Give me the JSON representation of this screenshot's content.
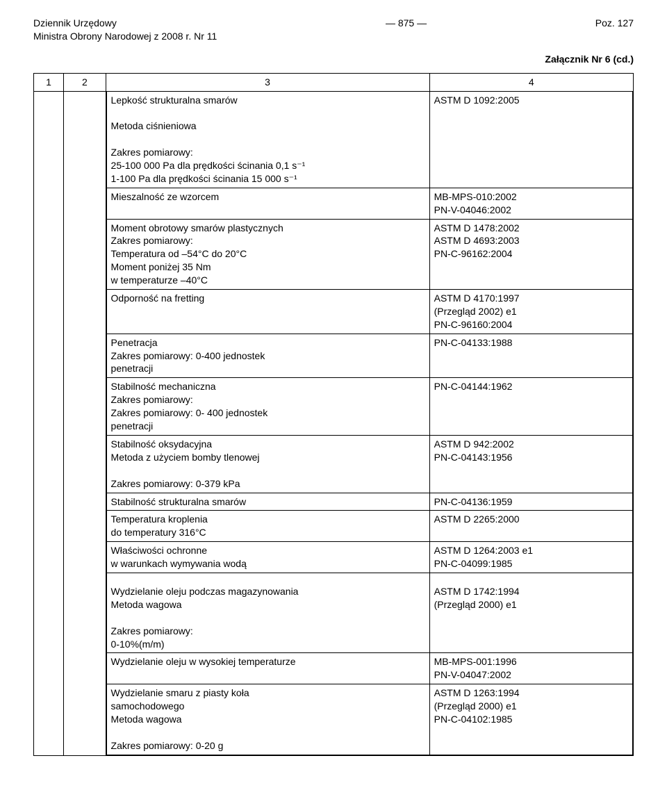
{
  "header": {
    "left_line1": "Dziennik Urzędowy",
    "left_line2": "Ministra Obrony Narodowej z 2008 r. Nr 11",
    "center": "— 875 —",
    "right": "Poz. 127"
  },
  "attachment": "Załącznik Nr 6 (cd.)",
  "colhead": {
    "c1": "1",
    "c2": "2",
    "c3": "3",
    "c4": "4"
  },
  "rows": [
    {
      "left": "Lepkość strukturalna smarów\n\nMetoda ciśnieniowa\n\nZakres pomiarowy:\n25-100 000 Pa dla prędkości ścinania 0,1 s⁻¹\n1-100 Pa dla prędkości ścinania 15 000 s⁻¹",
      "right": "ASTM D 1092:2005"
    },
    {
      "left": "Mieszalność ze wzorcem",
      "right": "MB-MPS-010:2002\nPN-V-04046:2002"
    },
    {
      "left": "Moment obrotowy smarów plastycznych\nZakres pomiarowy:\nTemperatura od –54°C do 20°C\nMoment poniżej 35 Nm\nw temperaturze –40°C",
      "right": "ASTM D 1478:2002\nASTM D 4693:2003\nPN-C-96162:2004"
    },
    {
      "left": "Odporność na fretting",
      "right": "ASTM D 4170:1997\n(Przegląd 2002) e1\nPN-C-96160:2004"
    },
    {
      "left": "Penetracja\nZakres pomiarowy: 0-400 jednostek\npenetracji",
      "right": "PN-C-04133:1988"
    },
    {
      "left": "Stabilność mechaniczna\nZakres pomiarowy:\nZakres pomiarowy: 0- 400 jednostek\npenetracji",
      "right": "PN-C-04144:1962"
    },
    {
      "left": "Stabilność oksydacyjna\nMetoda z użyciem bomby tlenowej\n\nZakres pomiarowy: 0-379 kPa",
      "right": "ASTM D 942:2002\nPN-C-04143:1956"
    },
    {
      "left": "Stabilność strukturalna smarów",
      "right": "PN-C-04136:1959"
    },
    {
      "left": "Temperatura kroplenia\ndo temperatury 316°C",
      "right": "ASTM D 2265:2000"
    },
    {
      "left": "Właściwości ochronne\nw warunkach wymywania wodą",
      "right": "ASTM D 1264:2003 e1\nPN-C-04099:1985"
    },
    {
      "left": "Wydzielanie oleju podczas magazynowania\nMetoda wagowa\n\nZakres pomiarowy:\n0-10%(m/m)",
      "right": "ASTM D 1742:1994\n(Przegląd 2000) e1",
      "padTop": true
    },
    {
      "left": "Wydzielanie oleju w wysokiej temperaturze",
      "right": "MB-MPS-001:1996\nPN-V-04047:2002"
    },
    {
      "left": "Wydzielanie smaru z piasty koła\nsamochodowego\nMetoda wagowa\n\nZakres pomiarowy: 0-20 g",
      "right": "ASTM D 1263:1994\n(Przegląd 2000) e1\nPN-C-04102:1985"
    }
  ]
}
